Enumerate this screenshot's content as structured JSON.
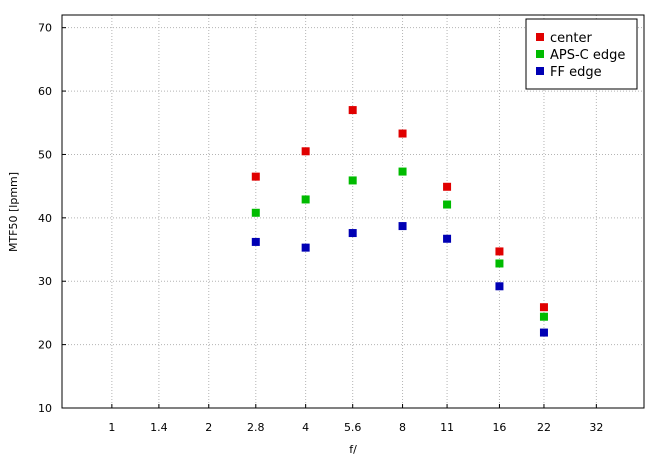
{
  "chart_data": {
    "type": "scatter",
    "title": "",
    "xlabel": "f/",
    "ylabel": "MTF50 [lpmm]",
    "x_scale": "log2",
    "x_ticks": [
      "1",
      "1.4",
      "2",
      "2.8",
      "4",
      "5.6",
      "8",
      "11",
      "16",
      "22",
      "32"
    ],
    "x_tick_values": [
      1,
      1.4,
      2,
      2.8,
      4,
      5.6,
      8,
      11,
      16,
      22,
      32
    ],
    "xlim": [
      0.7,
      45
    ],
    "ylim": [
      10,
      72
    ],
    "y_ticks": [
      10,
      20,
      30,
      40,
      50,
      60,
      70
    ],
    "grid": true,
    "legend_position": "top-right",
    "series": [
      {
        "name": "center",
        "color": "#e00000",
        "x": [
          2.8,
          4,
          5.6,
          8,
          11,
          16,
          22
        ],
        "y": [
          46.5,
          50.5,
          57.0,
          53.3,
          44.9,
          34.7,
          25.9
        ]
      },
      {
        "name": "APS-C edge",
        "color": "#00bb00",
        "x": [
          2.8,
          4,
          5.6,
          8,
          11,
          16,
          22
        ],
        "y": [
          40.8,
          42.9,
          45.9,
          47.3,
          42.1,
          32.8,
          24.4
        ]
      },
      {
        "name": "FF edge",
        "color": "#0000b4",
        "x": [
          2.8,
          4,
          5.6,
          8,
          11,
          16,
          22
        ],
        "y": [
          36.2,
          35.3,
          37.6,
          38.7,
          36.7,
          29.2,
          21.9
        ]
      }
    ]
  }
}
